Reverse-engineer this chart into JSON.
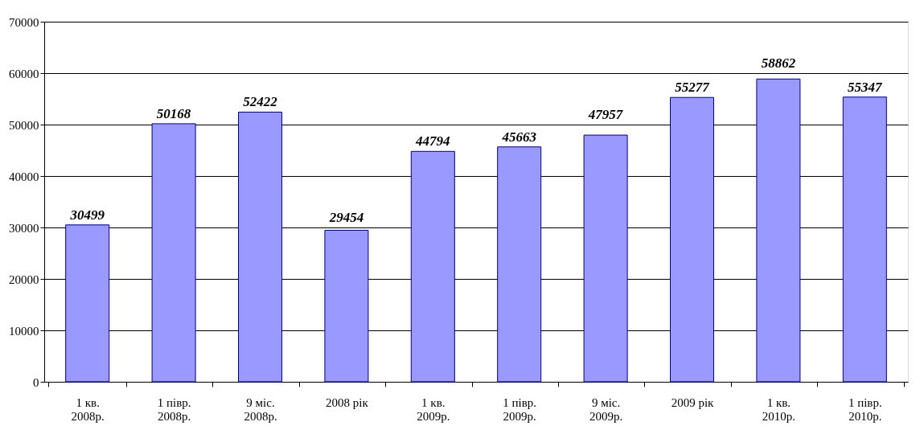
{
  "chart_data": {
    "type": "bar",
    "categories": [
      "1 кв.\n2008р.",
      "1 півр.\n2008р.",
      "9 міс.\n2008р.",
      "2008 рік",
      "1 кв.\n2009р.",
      "1 півр.\n2009р.",
      "9 міс.\n2009р.",
      "2009 рік",
      "1 кв.\n2010р.",
      "1 півр.\n2010р."
    ],
    "values": [
      30499,
      50168,
      52422,
      29454,
      44794,
      45663,
      47957,
      55277,
      58862,
      55347
    ],
    "color": "#9999ff",
    "ylim": [
      0,
      70000
    ],
    "yticks": [
      0,
      10000,
      20000,
      30000,
      40000,
      50000,
      60000,
      70000
    ],
    "grid": "y",
    "data_labels": true
  }
}
